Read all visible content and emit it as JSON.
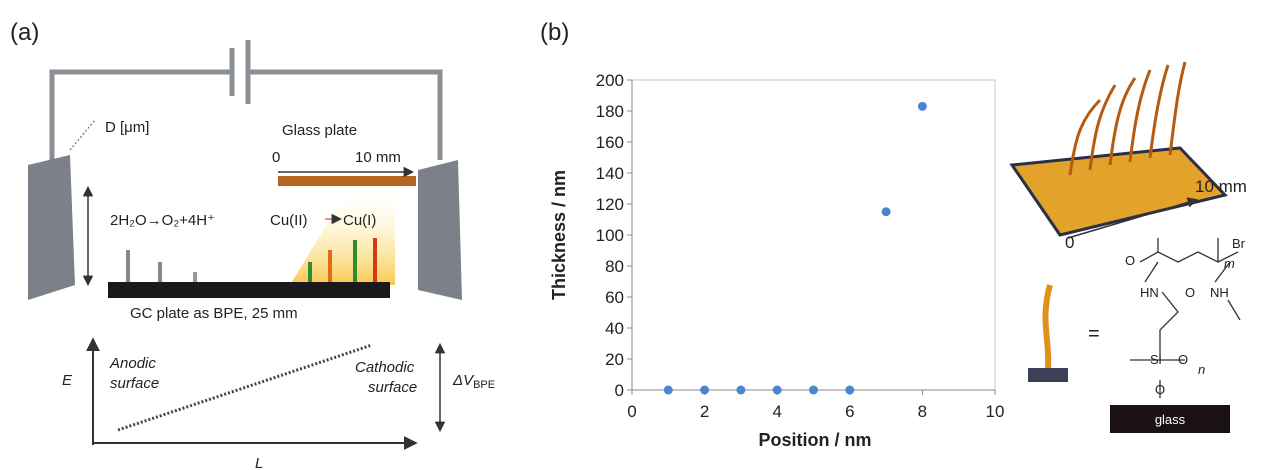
{
  "panels": {
    "a": "(a)",
    "b": "(b)"
  },
  "diagram_a": {
    "d_label": "D [μm]",
    "glass_plate": "Glass plate",
    "scale_start": "0",
    "scale_end": "10 mm",
    "anode_reaction": "2H₂O→O₂+4H⁺",
    "cu2": "Cu(II)",
    "cu1": "Cu(I)",
    "bpe_label": "GC plate as BPE, 25 mm",
    "e_axis": "E",
    "l_axis": "L",
    "anodic": [
      "Anodic",
      "surface"
    ],
    "cathodic": [
      "Cathodic",
      "surface"
    ],
    "delta_v": "ΔV",
    "delta_v_sub": "BPE"
  },
  "chart_data": {
    "type": "scatter",
    "xlabel": "Position / nm",
    "ylabel": "Thickness / nm",
    "x": [
      1,
      2,
      3,
      4,
      5,
      6,
      7,
      8
    ],
    "values": [
      0,
      0,
      0,
      0,
      0,
      0,
      115,
      183
    ],
    "color": "#4a86d0",
    "xlim": [
      0,
      10
    ],
    "xticks": [
      0,
      2,
      4,
      6,
      8,
      10
    ],
    "ylim": [
      0,
      200
    ],
    "yticks": [
      0,
      20,
      40,
      60,
      80,
      100,
      120,
      140,
      160,
      180,
      200
    ]
  },
  "diagram_b": {
    "array_length": "10 mm",
    "array_start": "0",
    "br": "Br",
    "m": "m",
    "o1": "O",
    "hn": "HN",
    "o2": "O",
    "nh": "NH",
    "si": "Si",
    "o3": "O",
    "n": "n",
    "o4": "O",
    "equals": "=",
    "glass": "glass"
  }
}
